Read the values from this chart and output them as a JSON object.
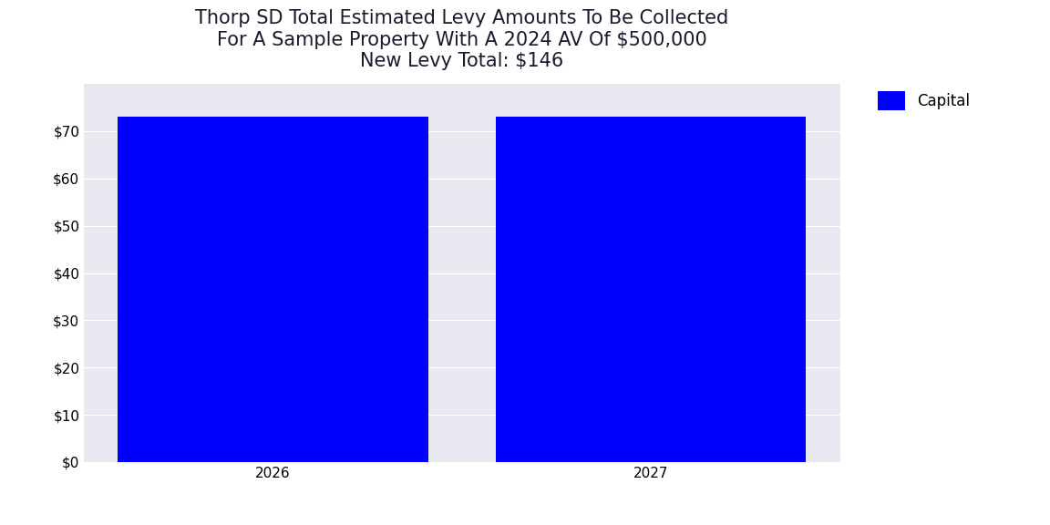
{
  "title_line1": "Thorp SD Total Estimated Levy Amounts To Be Collected",
  "title_line2": "For A Sample Property With A 2024 AV Of $500,000",
  "title_line3": "New Levy Total: $146",
  "categories": [
    "2026",
    "2027"
  ],
  "values": [
    73,
    73
  ],
  "bar_color": "#0000FF",
  "legend_label": "Capital",
  "ylim": [
    0,
    80
  ],
  "yticks": [
    0,
    10,
    20,
    30,
    40,
    50,
    60,
    70
  ],
  "ytick_labels": [
    "$0",
    "$10",
    "$20",
    "$30",
    "$40",
    "$50",
    "$60",
    "$70"
  ],
  "plot_bg_color": "#E8E8F0",
  "fig_bg_color": "#ffffff",
  "title_fontsize": 15,
  "tick_fontsize": 11,
  "legend_fontsize": 12,
  "bar_width": 0.82,
  "xlim": [
    -0.5,
    1.5
  ]
}
